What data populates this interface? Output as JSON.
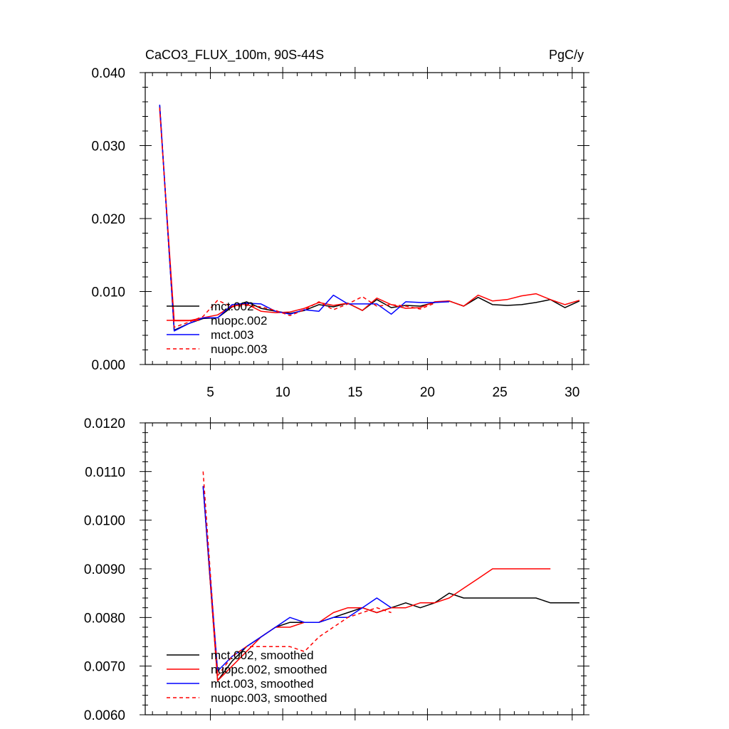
{
  "header": {
    "title": "CaCO3_FLUX_100m, 90S-44S",
    "units": "PgC/y"
  },
  "chart_data": [
    {
      "type": "line",
      "title": "CaCO3_FLUX_100m, 90S-44S",
      "units": "PgC/y",
      "xlim": [
        0.5,
        30.8
      ],
      "ylim": [
        0.0,
        0.04
      ],
      "xticks": [
        5,
        10,
        15,
        20,
        25,
        30
      ],
      "xtick_labels": [
        "5",
        "10",
        "15",
        "20",
        "25",
        "30"
      ],
      "yticks": [
        0.0,
        0.01,
        0.02,
        0.03,
        0.04
      ],
      "ytick_labels": [
        "0.000",
        "0.010",
        "0.020",
        "0.030",
        "0.040"
      ],
      "legend_position": "bottom-left",
      "series": [
        {
          "name": "mct.002",
          "color": "#000000",
          "dash": "solid",
          "x": [
            1,
            2,
            3,
            4,
            5,
            6,
            7,
            8,
            9,
            10,
            11,
            12,
            13,
            14,
            15,
            16,
            17,
            18,
            19,
            20,
            21,
            22,
            23,
            24,
            25,
            26,
            27,
            28,
            29,
            30
          ],
          "values": [
            0.0355,
            0.0047,
            0.0056,
            0.0063,
            0.0064,
            0.0079,
            0.0086,
            0.0077,
            0.0073,
            0.007,
            0.0074,
            0.0082,
            0.0079,
            0.0084,
            0.0074,
            0.0089,
            0.0078,
            0.0081,
            0.008,
            0.0085,
            0.0087,
            0.008,
            0.0092,
            0.0082,
            0.0081,
            0.0082,
            0.0085,
            0.0089,
            0.0078,
            0.0087
          ]
        },
        {
          "name": "nuopc.002",
          "color": "#ff0000",
          "dash": "solid",
          "x": [
            1,
            2,
            3,
            4,
            5,
            6,
            7,
            8,
            9,
            10,
            11,
            12,
            13,
            14,
            15,
            16,
            17,
            18,
            19,
            20,
            21,
            22,
            23,
            24,
            25,
            26,
            27,
            28,
            29,
            30
          ],
          "values": [
            0.035,
            0.006,
            0.006,
            0.0064,
            0.0068,
            0.008,
            0.0083,
            0.0073,
            0.0071,
            0.0072,
            0.0077,
            0.0085,
            0.0081,
            0.0084,
            0.0074,
            0.0091,
            0.0082,
            0.0077,
            0.0078,
            0.0086,
            0.0087,
            0.008,
            0.0095,
            0.0087,
            0.0089,
            0.0094,
            0.0097,
            0.0089,
            0.0082,
            0.0088
          ]
        },
        {
          "name": "mct.003",
          "color": "#0000ff",
          "dash": "solid",
          "x": [
            1,
            2,
            3,
            4,
            5,
            6,
            7,
            8,
            9,
            10,
            11,
            12,
            13,
            14,
            15,
            16,
            17,
            18,
            19,
            20,
            21
          ],
          "values": [
            0.0356,
            0.0046,
            0.0056,
            0.0064,
            0.0064,
            0.0082,
            0.0084,
            0.0083,
            0.0073,
            0.0069,
            0.0075,
            0.0073,
            0.0095,
            0.0083,
            0.0083,
            0.0083,
            0.0069,
            0.0086,
            0.0085,
            0.0085,
            0.0086
          ]
        },
        {
          "name": "nuopc.003",
          "color": "#ff0000",
          "dash": "dashed",
          "x": [
            1,
            2,
            3,
            4,
            5,
            6,
            7,
            8,
            9,
            10,
            11,
            12,
            13,
            14,
            15,
            16,
            17,
            18,
            19,
            20
          ],
          "values": [
            0.0352,
            0.0051,
            0.0058,
            0.0066,
            0.0088,
            0.0079,
            0.0081,
            0.0079,
            0.0074,
            0.0067,
            0.0075,
            0.0086,
            0.0075,
            0.0083,
            0.0093,
            0.008,
            0.0082,
            0.008,
            0.0076,
            0.0084
          ]
        }
      ]
    },
    {
      "type": "line",
      "xlim": [
        0.5,
        30.8
      ],
      "ylim": [
        0.006,
        0.012
      ],
      "xticks": [
        5,
        10,
        15,
        20,
        25,
        30
      ],
      "yticks": [
        0.006,
        0.007,
        0.008,
        0.009,
        0.01,
        0.011,
        0.012
      ],
      "ytick_labels": [
        "0.0060",
        "0.0070",
        "0.0080",
        "0.0090",
        "0.0100",
        "0.0110",
        "0.0120"
      ],
      "legend_position": "bottom-left",
      "series": [
        {
          "name": "mct.002, smoothed",
          "color": "#000000",
          "dash": "solid",
          "x": [
            4,
            5,
            6,
            7,
            8,
            9,
            10,
            11,
            12,
            13,
            14,
            15,
            16,
            17,
            18,
            19,
            20,
            21,
            22,
            23,
            24,
            25,
            26,
            27,
            28,
            29,
            30
          ],
          "values": [
            0.0107,
            0.0067,
            0.0071,
            0.0074,
            0.0076,
            0.0078,
            0.0079,
            0.0079,
            0.0079,
            0.008,
            0.0081,
            0.0082,
            0.0081,
            0.0082,
            0.0083,
            0.0082,
            0.0083,
            0.0085,
            0.0084,
            0.0084,
            0.0084,
            0.0084,
            0.0084,
            0.0084,
            0.0083,
            0.0083,
            0.0083
          ]
        },
        {
          "name": "nuopc.002, smoothed",
          "color": "#ff0000",
          "dash": "solid",
          "x": [
            4,
            5,
            6,
            7,
            8,
            9,
            10,
            11,
            12,
            13,
            14,
            15,
            16,
            17,
            18,
            19,
            20,
            21,
            22,
            23,
            24,
            25,
            26,
            27,
            28
          ],
          "values": [
            0.0107,
            0.0067,
            0.007,
            0.0073,
            0.0076,
            0.0078,
            0.0078,
            0.0079,
            0.0079,
            0.0081,
            0.0082,
            0.0082,
            0.0081,
            0.0082,
            0.0082,
            0.0083,
            0.0083,
            0.0084,
            0.0086,
            0.0088,
            0.009,
            0.009,
            0.009,
            0.009,
            0.009
          ]
        },
        {
          "name": "mct.003, smoothed",
          "color": "#0000ff",
          "dash": "solid",
          "x": [
            4,
            5,
            6,
            7,
            8,
            9,
            10,
            11,
            12,
            13,
            14,
            15,
            16,
            17
          ],
          "values": [
            0.0107,
            0.0069,
            0.0072,
            0.0074,
            0.0076,
            0.0078,
            0.008,
            0.0079,
            0.0079,
            0.008,
            0.008,
            0.0082,
            0.0084,
            0.0082
          ]
        },
        {
          "name": "nuopc.003, smoothed",
          "color": "#ff0000",
          "dash": "dashed",
          "x": [
            4,
            5,
            6,
            7,
            8,
            9,
            10,
            11,
            12,
            13,
            14,
            15,
            16,
            17
          ],
          "values": [
            0.011,
            0.0068,
            0.0072,
            0.0074,
            0.0074,
            0.0074,
            0.0074,
            0.0073,
            0.0076,
            0.0078,
            0.008,
            0.0081,
            0.0082,
            0.0081
          ]
        }
      ]
    }
  ]
}
